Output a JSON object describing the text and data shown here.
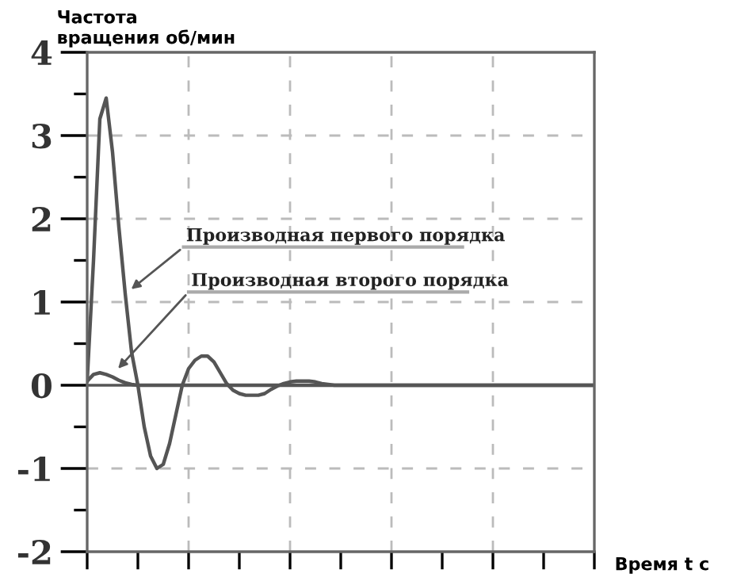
{
  "chart_data": {
    "type": "line",
    "ylabel": "Частота\nвращения об/мин",
    "xlabel": "Время t c",
    "categories": [
      null,
      null,
      null,
      null,
      null,
      null,
      null,
      null,
      null,
      null,
      null,
      null,
      null,
      null,
      null,
      null,
      null,
      null,
      null,
      null,
      null,
      null,
      null,
      null,
      null,
      null,
      null,
      null,
      null,
      null,
      null,
      null,
      null,
      null,
      null,
      null,
      null,
      null,
      null,
      null,
      null,
      null,
      null,
      null,
      null,
      null,
      null,
      null,
      null,
      null,
      null,
      null,
      null,
      null,
      null,
      null,
      null,
      null,
      null,
      null,
      null,
      null,
      null,
      null,
      null,
      null,
      null,
      null,
      null,
      null,
      null,
      null,
      null,
      null,
      null,
      null,
      null,
      null,
      null,
      null,
      null
    ],
    "series": [
      {
        "color": "#555555",
        "values": [
          0.05,
          1.5,
          3.2,
          3.45,
          2.8,
          1.9,
          1.1,
          0.4,
          0.0,
          -0.5,
          -0.85,
          -1.0,
          -0.95,
          -0.7,
          -0.35,
          0.0,
          0.2,
          0.3,
          0.35,
          0.35,
          0.28,
          0.15,
          0.02,
          -0.06,
          -0.1,
          -0.12,
          -0.12,
          -0.12,
          -0.1,
          -0.05,
          -0.01,
          0.02,
          0.04,
          0.05,
          0.05,
          0.05,
          0.04,
          0.02,
          0.01,
          0,
          0,
          0,
          0,
          0,
          0,
          0,
          0,
          0,
          0,
          0,
          0,
          0,
          0,
          0,
          0,
          0,
          0,
          0,
          0,
          0,
          0,
          0,
          0,
          0,
          0,
          0,
          0,
          0,
          0,
          0,
          0,
          0,
          0,
          0,
          0,
          0,
          0,
          0,
          0,
          0,
          0
        ]
      },
      {
        "color": "#555555",
        "values": [
          0.05,
          0.13,
          0.15,
          0.13,
          0.1,
          0.06,
          0.03,
          0.01,
          0,
          0,
          0,
          0,
          0,
          0,
          0,
          0,
          0,
          0,
          0,
          0,
          0,
          0,
          0,
          0,
          0,
          0,
          0,
          0,
          0,
          0,
          0,
          0,
          0,
          0,
          0,
          0,
          0,
          0,
          0,
          0,
          0,
          0,
          0,
          0,
          0,
          0,
          0,
          0,
          0,
          0,
          0,
          0,
          0,
          0,
          0,
          0,
          0,
          0,
          0,
          0,
          0,
          0,
          0,
          0,
          0,
          0,
          0,
          0,
          0,
          0,
          0,
          0,
          0,
          0,
          0,
          0,
          0,
          0,
          0,
          0,
          0
        ]
      }
    ],
    "annotations": [
      "Производная первого порядка",
      "Производная второго порядка"
    ],
    "ylim": [
      -2,
      4
    ],
    "yticks": [
      -2,
      -1,
      0,
      1,
      2,
      3,
      4
    ],
    "grid": true,
    "tick_labels": "y",
    "legend": false,
    "line_style": "solid",
    "marker": "none"
  }
}
